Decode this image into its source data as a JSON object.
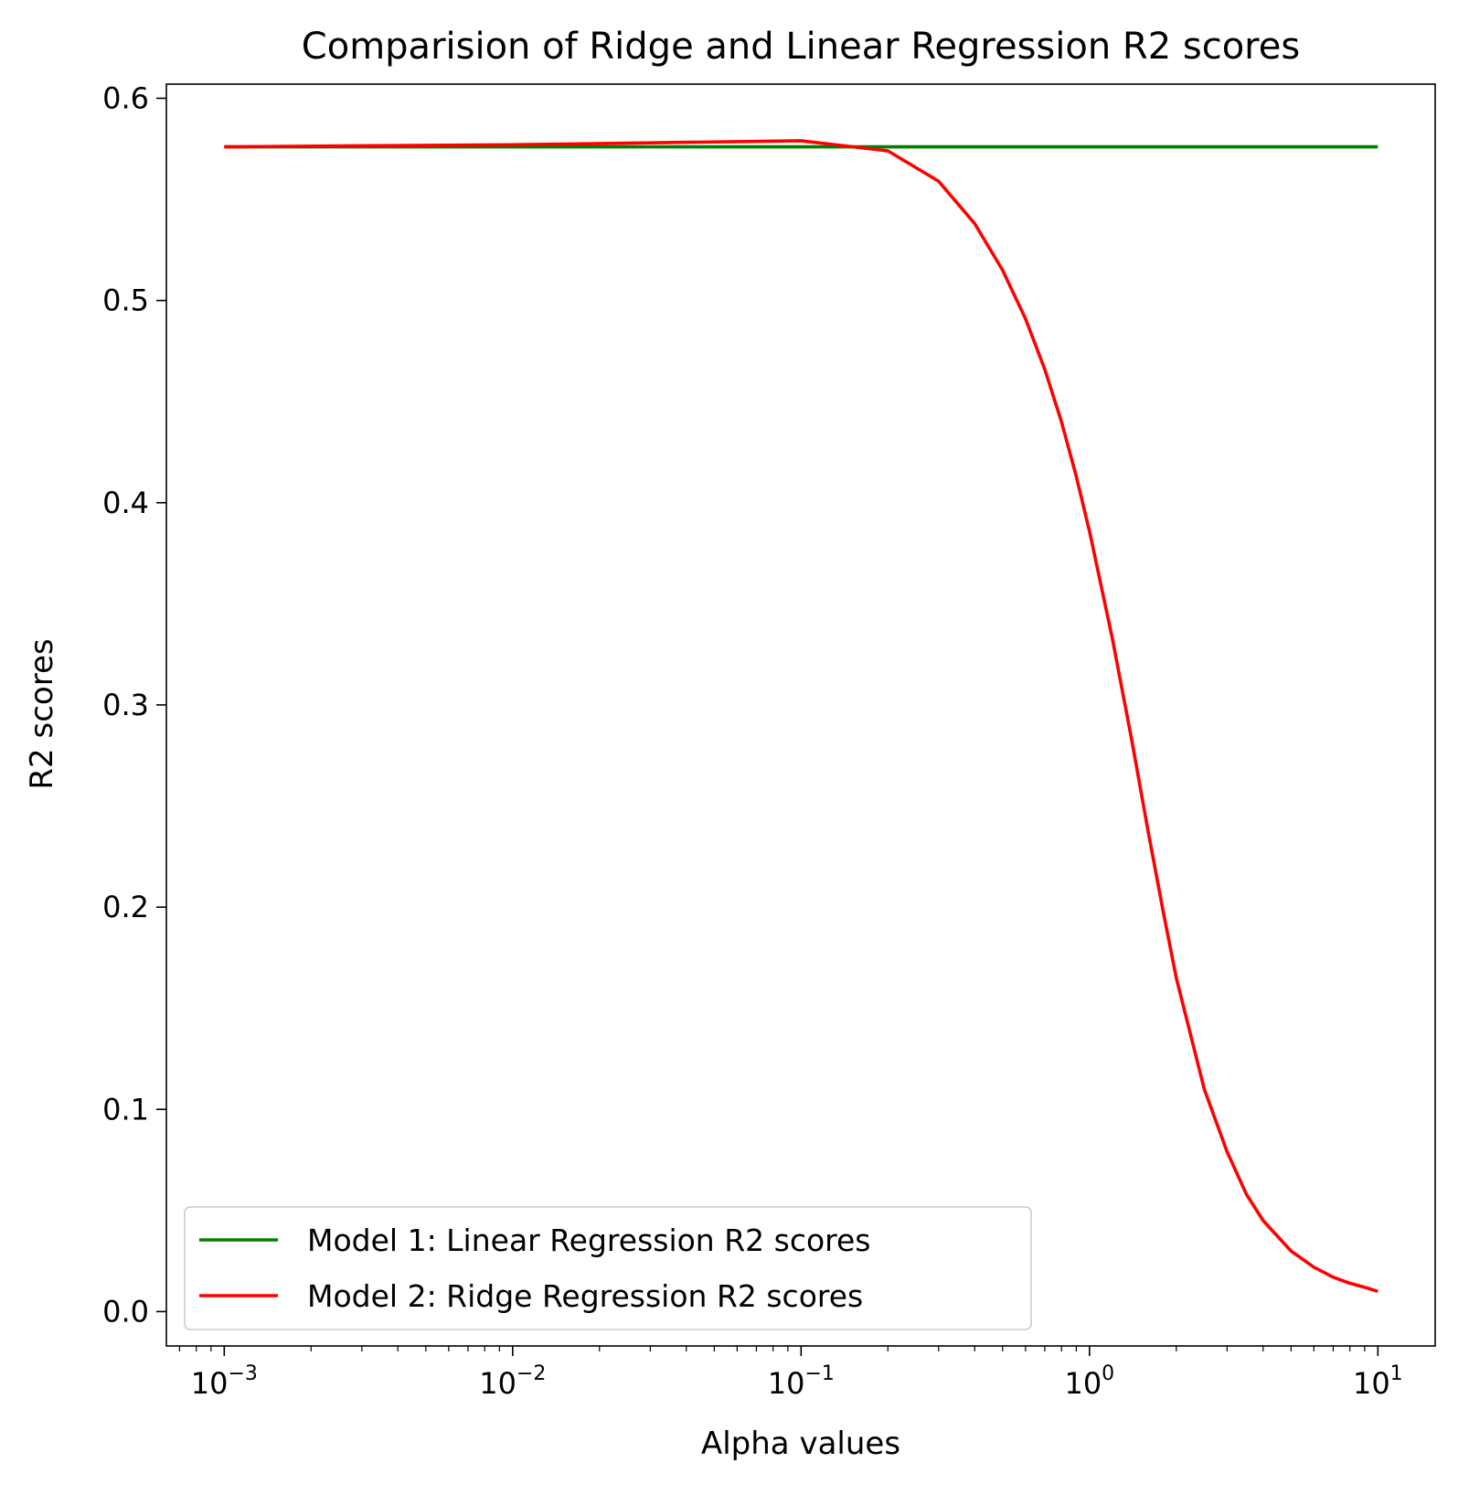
{
  "chart_data": {
    "type": "line",
    "title": "Comparision of Ridge and Linear Regression R2 scores",
    "xlabel": "Alpha values",
    "ylabel": "R2 scores",
    "xscale": "log",
    "xlim": [
      0.00063,
      15.8
    ],
    "ylim": [
      -0.017,
      0.607
    ],
    "xticks": [
      {
        "value": 0.001,
        "base": "10",
        "exp": "−3"
      },
      {
        "value": 0.01,
        "base": "10",
        "exp": "−2"
      },
      {
        "value": 0.1,
        "base": "10",
        "exp": "−1"
      },
      {
        "value": 1,
        "base": "10",
        "exp": "0"
      },
      {
        "value": 10,
        "base": "10",
        "exp": "1"
      }
    ],
    "yticks": [
      {
        "value": 0.0,
        "label": "0.0"
      },
      {
        "value": 0.1,
        "label": "0.1"
      },
      {
        "value": 0.2,
        "label": "0.2"
      },
      {
        "value": 0.3,
        "label": "0.3"
      },
      {
        "value": 0.4,
        "label": "0.4"
      },
      {
        "value": 0.5,
        "label": "0.5"
      },
      {
        "value": 0.6,
        "label": "0.6"
      }
    ],
    "grid": false,
    "legend": "lower-left",
    "series": [
      {
        "name": "Model 1: Linear Regression R2 scores",
        "color": "#008000",
        "x": [
          0.001,
          10
        ],
        "y": [
          0.576,
          0.576
        ]
      },
      {
        "name": "Model 2: Ridge Regression R2 scores",
        "color": "#ff0000",
        "x": [
          0.001,
          0.01,
          0.1,
          0.2,
          0.3,
          0.4,
          0.5,
          0.6,
          0.7,
          0.8,
          0.9,
          1.0,
          1.2,
          1.4,
          1.6,
          1.8,
          2.0,
          2.5,
          3.0,
          3.5,
          4.0,
          5.0,
          6.0,
          7.0,
          8.0,
          9.0,
          10.0
        ],
        "y": [
          0.576,
          0.577,
          0.579,
          0.574,
          0.559,
          0.538,
          0.515,
          0.491,
          0.466,
          0.44,
          0.413,
          0.386,
          0.333,
          0.283,
          0.237,
          0.198,
          0.165,
          0.11,
          0.079,
          0.058,
          0.045,
          0.03,
          0.022,
          0.017,
          0.014,
          0.012,
          0.01
        ]
      }
    ]
  }
}
